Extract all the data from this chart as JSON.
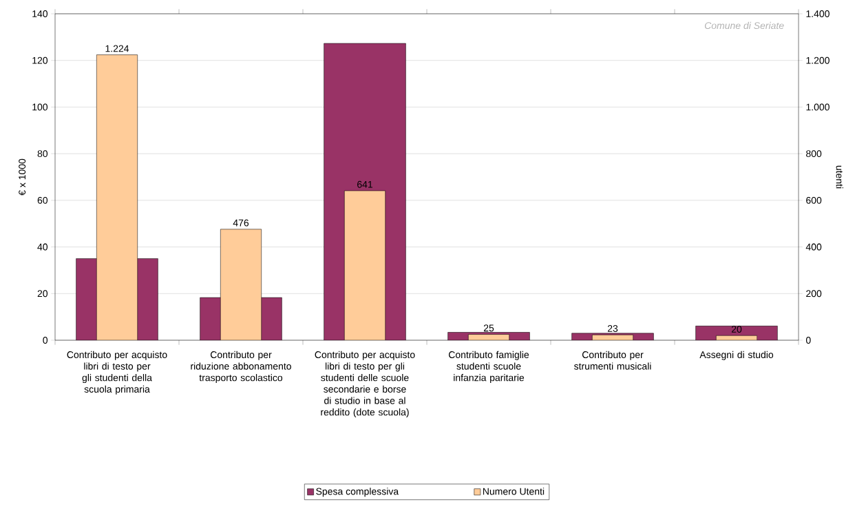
{
  "chart_data": {
    "type": "bar",
    "categories": [
      "Contributo per acquisto libri di testo per gli studenti della scuola primaria",
      "Contributo per riduzione abbonamento trasporto scolastico",
      "Contributo per acquisto libri di testo per gli studenti delle scuole secondarie e borse di studio in base al reddito (dote scuola)",
      "Contributo famiglie studenti scuole infanzia paritarie",
      "Contributo per strumenti musicali",
      "Assegni di studio"
    ],
    "series": [
      {
        "name": "Spesa complessiva",
        "color": "#993366",
        "values": [
          35,
          18.3,
          127.3,
          3.4,
          3,
          6.1
        ]
      },
      {
        "name": "Numero Utenti",
        "color": "#ffcc99",
        "axis": "y2",
        "values": [
          1224,
          476,
          641,
          25,
          23,
          20
        ],
        "value_labels": [
          "1.224",
          "476",
          "641",
          "25",
          "23",
          "20"
        ]
      }
    ],
    "ylabel": "€ x 1000",
    "y2label": "utenti",
    "ylim": [
      0,
      140
    ],
    "yticks": [
      0,
      20,
      40,
      60,
      80,
      100,
      120,
      140
    ],
    "y2lim": [
      0,
      1400
    ],
    "y2ticks": [
      0,
      {
        "value": 200,
        "label": "200"
      },
      {
        "value": 400,
        "label": "400"
      },
      {
        "value": 600,
        "label": "600"
      },
      {
        "value": 800,
        "label": "800"
      },
      {
        "value": 1000,
        "label": "1.000"
      },
      {
        "value": 1200,
        "label": "1.200"
      },
      {
        "value": 1400,
        "label": "1.400"
      }
    ],
    "annotations": [
      "Comune di Seriate"
    ],
    "grid": "y",
    "legend": "bottom"
  }
}
